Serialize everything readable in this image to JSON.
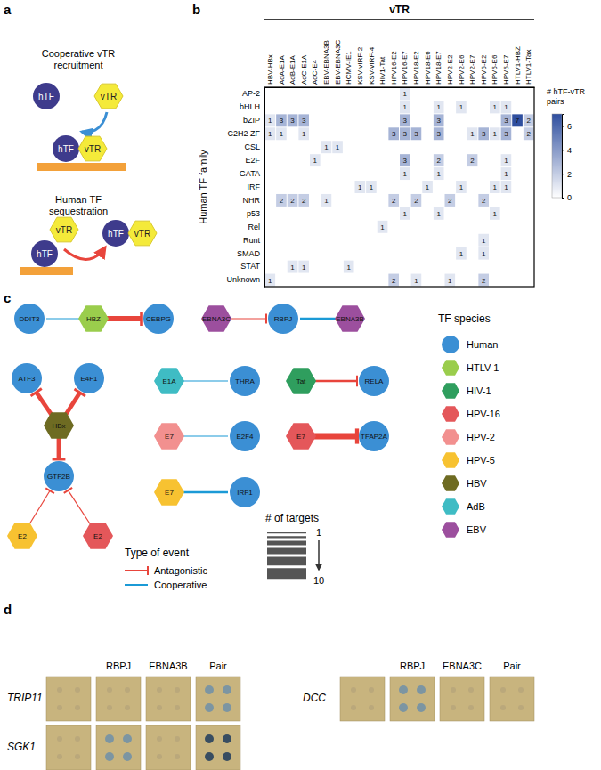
{
  "panel_labels": [
    "a",
    "b",
    "c",
    "d"
  ],
  "panel_a": {
    "top": {
      "title": [
        "Cooperative vTR",
        "recruitment"
      ],
      "htf": "hTF",
      "vtr": "vTR"
    },
    "bottom": {
      "title": [
        "Human TF",
        "sequestration"
      ],
      "htf": "hTF",
      "vtr": "vTR"
    }
  },
  "chart_data": {
    "type": "heatmap",
    "title": "vTR",
    "y_label": "Human TF family",
    "color": "#2f4f9f",
    "data_labels": true,
    "x": [
      "HBV-HBx",
      "AdA-E1A",
      "AdB-E1A",
      "AdC-E1A",
      "AdC-E4",
      "EBV-EBNA3B",
      "EBV-EBNA3C",
      "HCMV-IE1",
      "KSV-vIRF-2",
      "KSV-vIRF-4",
      "HIV1-Tat",
      "HPV16-E2",
      "HPV16-E7",
      "HPV18-E2",
      "HPV18-E6",
      "HPV18-E7",
      "HPV2-E2",
      "HPV2-E6",
      "HPV2-E7",
      "HPV5-E2",
      "HPV5-E6",
      "HPV5-E7",
      "HTLV1-HBZ",
      "HTLV1-Tax"
    ],
    "y": [
      "AP-2",
      "bHLH",
      "bZIP",
      "C2H2 ZF",
      "CSL",
      "E2F",
      "GATA",
      "IRF",
      "NHR",
      "p53",
      "Rel",
      "Runt",
      "SMAD",
      "STAT",
      "Unknown"
    ],
    "z": [
      [
        null,
        null,
        null,
        null,
        null,
        null,
        null,
        null,
        null,
        null,
        null,
        null,
        1,
        null,
        null,
        null,
        null,
        null,
        null,
        null,
        null,
        null,
        null,
        null
      ],
      [
        null,
        null,
        null,
        null,
        null,
        null,
        null,
        null,
        null,
        null,
        null,
        null,
        1,
        null,
        null,
        1,
        null,
        1,
        null,
        null,
        1,
        1,
        null,
        null
      ],
      [
        1,
        3,
        3,
        3,
        null,
        null,
        null,
        null,
        null,
        null,
        null,
        null,
        3,
        null,
        null,
        3,
        null,
        null,
        null,
        null,
        null,
        3,
        7,
        2
      ],
      [
        1,
        1,
        null,
        1,
        null,
        null,
        null,
        null,
        null,
        null,
        null,
        3,
        3,
        3,
        null,
        3,
        null,
        null,
        1,
        3,
        1,
        3,
        null,
        2
      ],
      [
        null,
        null,
        null,
        null,
        null,
        1,
        1,
        null,
        null,
        null,
        null,
        null,
        null,
        null,
        null,
        null,
        null,
        null,
        null,
        null,
        null,
        null,
        null,
        null
      ],
      [
        null,
        null,
        null,
        null,
        1,
        null,
        null,
        null,
        null,
        null,
        null,
        null,
        3,
        null,
        null,
        2,
        null,
        null,
        2,
        null,
        null,
        1,
        null,
        null
      ],
      [
        null,
        null,
        null,
        null,
        null,
        null,
        null,
        null,
        null,
        null,
        null,
        null,
        1,
        null,
        null,
        1,
        null,
        null,
        null,
        null,
        null,
        1,
        null,
        null
      ],
      [
        null,
        null,
        null,
        null,
        null,
        null,
        null,
        null,
        1,
        1,
        null,
        null,
        null,
        null,
        1,
        null,
        null,
        1,
        null,
        null,
        1,
        1,
        null,
        null
      ],
      [
        null,
        2,
        2,
        2,
        null,
        1,
        null,
        null,
        null,
        null,
        null,
        2,
        null,
        2,
        null,
        null,
        2,
        null,
        null,
        2,
        null,
        null,
        null,
        null
      ],
      [
        null,
        null,
        null,
        null,
        null,
        null,
        null,
        null,
        null,
        null,
        null,
        null,
        1,
        null,
        null,
        1,
        null,
        null,
        null,
        null,
        1,
        null,
        null,
        null
      ],
      [
        null,
        null,
        null,
        null,
        null,
        null,
        null,
        null,
        null,
        null,
        1,
        null,
        null,
        null,
        null,
        null,
        null,
        null,
        null,
        null,
        null,
        null,
        null,
        null
      ],
      [
        null,
        null,
        null,
        null,
        null,
        null,
        null,
        null,
        null,
        null,
        null,
        null,
        null,
        null,
        null,
        null,
        null,
        null,
        null,
        1,
        null,
        null,
        null,
        null
      ],
      [
        null,
        null,
        null,
        null,
        null,
        null,
        null,
        null,
        null,
        null,
        null,
        null,
        null,
        null,
        null,
        null,
        null,
        1,
        null,
        1,
        null,
        null,
        null,
        null
      ],
      [
        null,
        null,
        1,
        1,
        null,
        null,
        null,
        1,
        null,
        null,
        null,
        null,
        null,
        null,
        null,
        null,
        null,
        null,
        null,
        null,
        null,
        null,
        null,
        null
      ],
      [
        1,
        null,
        null,
        null,
        null,
        null,
        null,
        null,
        null,
        null,
        null,
        2,
        null,
        1,
        null,
        null,
        1,
        null,
        null,
        2,
        null,
        null,
        null,
        null
      ]
    ],
    "colorbar": {
      "title": [
        "# hTF-vTR",
        "pairs"
      ],
      "range": [
        0,
        7
      ],
      "ticks": [
        0,
        2,
        4,
        6
      ]
    }
  },
  "panel_c": {
    "nodes": [
      {
        "label": "DDIT3",
        "species": 0
      },
      {
        "label": "HBZ",
        "species": 1
      },
      {
        "label": "CEBPG",
        "species": 0
      },
      {
        "label": "EBNA3C",
        "species": 8
      },
      {
        "label": "RBPJ",
        "species": 0
      },
      {
        "label": "EBNA3B",
        "species": 8
      },
      {
        "label": "ATF3",
        "species": 0
      },
      {
        "label": "E4F1",
        "species": 0
      },
      {
        "label": "HBx",
        "species": 6
      },
      {
        "label": "GTF2B",
        "species": 0
      },
      {
        "label": "E2",
        "species": 5
      },
      {
        "label": "E2",
        "species": 3
      },
      {
        "label": "E1A",
        "species": 7
      },
      {
        "label": "THRA",
        "species": 0
      },
      {
        "label": "E7",
        "species": 4
      },
      {
        "label": "E2F4",
        "species": 0
      },
      {
        "label": "E7",
        "species": 5
      },
      {
        "label": "IRF1",
        "species": 0
      },
      {
        "label": "Tat",
        "species": 2
      },
      {
        "label": "RELA",
        "species": 0
      },
      {
        "label": "E7",
        "species": 3
      },
      {
        "label": "TFAP2A",
        "species": 0
      }
    ],
    "edges": [
      {
        "source": 1,
        "target": 0,
        "event": 1,
        "targets": 1
      },
      {
        "source": 1,
        "target": 2,
        "event": 0,
        "targets": 5
      },
      {
        "source": 3,
        "target": 4,
        "event": 0,
        "targets": 1
      },
      {
        "source": 5,
        "target": 4,
        "event": 1,
        "targets": 2
      },
      {
        "source": 8,
        "target": 6,
        "event": 0,
        "targets": 4
      },
      {
        "source": 8,
        "target": 7,
        "event": 0,
        "targets": 4
      },
      {
        "source": 8,
        "target": 9,
        "event": 0,
        "targets": 4
      },
      {
        "source": 10,
        "target": 9,
        "event": 0,
        "targets": 1
      },
      {
        "source": 11,
        "target": 9,
        "event": 0,
        "targets": 1
      },
      {
        "source": 12,
        "target": 13,
        "event": 1,
        "targets": 1
      },
      {
        "source": 14,
        "target": 15,
        "event": 1,
        "targets": 1
      },
      {
        "source": 16,
        "target": 17,
        "event": 1,
        "targets": 2
      },
      {
        "source": 18,
        "target": 19,
        "event": 0,
        "targets": 2
      },
      {
        "source": 20,
        "target": 21,
        "event": 0,
        "targets": 6
      }
    ],
    "species_legend": {
      "title": "TF species",
      "items": [
        {
          "name": "Human",
          "color": "#3b8fd4",
          "shape": "circle"
        },
        {
          "name": "HTLV-1",
          "color": "#9acd4c",
          "shape": "hexagon"
        },
        {
          "name": "HIV-1",
          "color": "#2f9e5e",
          "shape": "hexagon"
        },
        {
          "name": "HPV-16",
          "color": "#e4575a",
          "shape": "hexagon"
        },
        {
          "name": "HPV-2",
          "color": "#f2908f",
          "shape": "hexagon"
        },
        {
          "name": "HPV-5",
          "color": "#f7c231",
          "shape": "hexagon"
        },
        {
          "name": "HBV",
          "color": "#6e6b22",
          "shape": "hexagon"
        },
        {
          "name": "AdB",
          "color": "#3fbcc4",
          "shape": "hexagon"
        },
        {
          "name": "EBV",
          "color": "#9c4f9e",
          "shape": "hexagon"
        }
      ]
    },
    "event_legend": {
      "title": "Type of event",
      "items": [
        {
          "name": "Antagonistic",
          "color": "#e8453c"
        },
        {
          "name": "Cooperative",
          "color": "#1b9ad6"
        }
      ]
    },
    "targets_legend": {
      "title": "# of targets",
      "min": 1,
      "max": 10
    }
  },
  "panel_d": {
    "groups": [
      {
        "columns": [
          "RBPJ",
          "EBNA3B",
          "Pair"
        ],
        "rows": [
          "TRIP11",
          "SGK1"
        ]
      },
      {
        "columns": [
          "RBPJ",
          "EBNA3C",
          "Pair"
        ],
        "rows": [
          "DCC"
        ]
      }
    ]
  }
}
